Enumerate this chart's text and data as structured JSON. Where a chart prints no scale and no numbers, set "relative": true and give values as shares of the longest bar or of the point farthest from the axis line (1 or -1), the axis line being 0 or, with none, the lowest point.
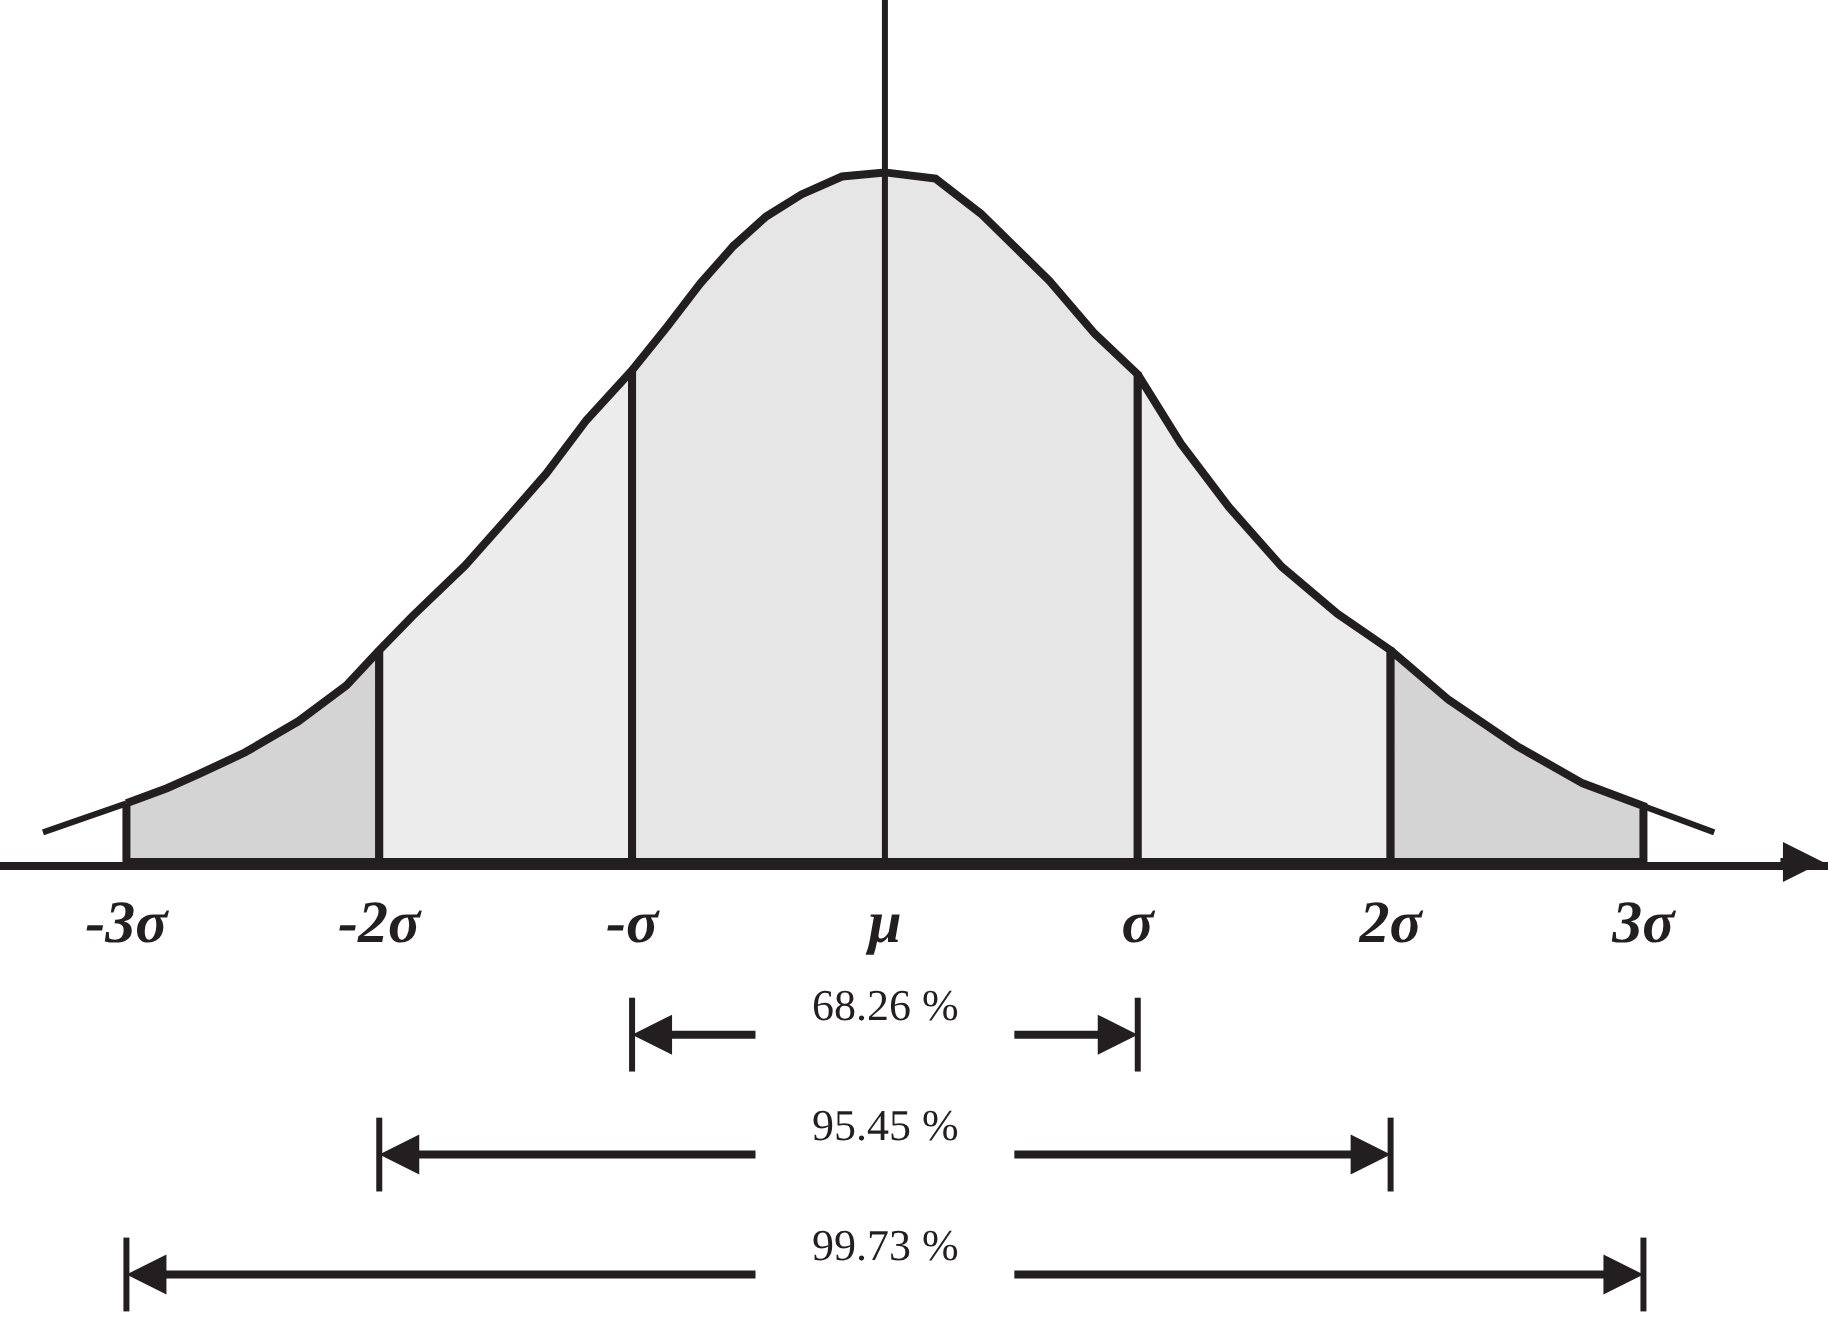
{
  "chart_data": {
    "type": "area",
    "relative": true,
    "xlim": [
      -3.5,
      3.73
    ],
    "xticks": [
      {
        "value": -3,
        "label": "-3σ"
      },
      {
        "value": -2,
        "label": "-2σ"
      },
      {
        "value": -1,
        "label": "-σ"
      },
      {
        "value": 0,
        "label": "μ"
      },
      {
        "value": 1,
        "label": "σ"
      },
      {
        "value": 2,
        "label": "2σ"
      },
      {
        "value": 3,
        "label": "3σ"
      }
    ],
    "series": [
      {
        "type": "line",
        "color": "#231f20",
        "x": [
          -3.33,
          -3
        ],
        "values": [
          0.043,
          0.085
        ]
      },
      {
        "type": "line",
        "color": "#231f20",
        "x": [
          3,
          3.28
        ],
        "values": [
          0.081,
          0.043
        ]
      },
      {
        "color": "#d4d4d4",
        "x": [
          -3,
          -2.84,
          -2.71,
          -2.53,
          -2.32,
          -2.13,
          -2
        ],
        "values": [
          0.085,
          0.107,
          0.128,
          0.159,
          0.204,
          0.256,
          0.307
        ]
      },
      {
        "color": "#ececec",
        "x": [
          -2,
          -1.87,
          -1.66,
          -1.5,
          -1.34,
          -1.18,
          -1
        ],
        "values": [
          0.307,
          0.356,
          0.43,
          0.496,
          0.563,
          0.641,
          0.713
        ]
      },
      {
        "color": "#e6e6e7",
        "x": [
          -1,
          -0.86,
          -0.73,
          -0.6,
          -0.47,
          -0.33,
          -0.17,
          0,
          0.2,
          0.38,
          0.65,
          0.83,
          1
        ],
        "values": [
          0.713,
          0.777,
          0.839,
          0.893,
          0.936,
          0.968,
          0.994,
          1,
          0.991,
          0.94,
          0.843,
          0.766,
          0.707
        ]
      },
      {
        "color": "#ececec",
        "x": [
          1,
          1.17,
          1.36,
          1.57,
          1.79,
          2
        ],
        "values": [
          0.707,
          0.607,
          0.515,
          0.428,
          0.36,
          0.307
        ]
      },
      {
        "color": "#d4d4d4",
        "x": [
          2,
          2.23,
          2.5,
          2.76,
          3
        ],
        "values": [
          0.307,
          0.235,
          0.168,
          0.114,
          0.081
        ]
      }
    ],
    "ref_lines": [
      {
        "axis": "x",
        "value": 0,
        "color": "#231f20"
      }
    ],
    "annotations": [
      "68.26 %",
      "95.45 %",
      "99.73 %"
    ]
  }
}
